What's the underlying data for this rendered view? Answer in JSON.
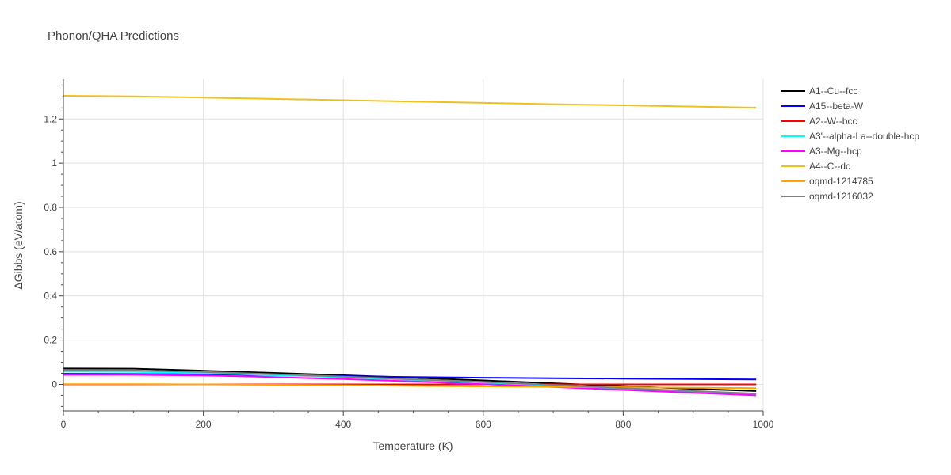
{
  "chart_data": {
    "type": "line",
    "title": "Phonon/QHA Predictions",
    "xlabel": "Temperature (K)",
    "ylabel": "ΔGibbs (eV/atom)",
    "xlim": [
      0,
      1000
    ],
    "ylim": [
      -0.12,
      1.38
    ],
    "xticks": [
      0,
      200,
      400,
      600,
      800,
      1000
    ],
    "xtick_labels": [
      "0",
      "200",
      "400",
      "600",
      "800",
      "1000"
    ],
    "yticks": [
      0,
      0.2,
      0.4,
      0.6,
      0.8,
      1,
      1.2
    ],
    "ytick_labels": [
      "0",
      "0.2",
      "0.4",
      "0.6",
      "0.8",
      "1",
      "1.2"
    ],
    "grid": true,
    "legend_position": "right",
    "series": [
      {
        "name": "A1--Cu--fcc",
        "color": "#000000",
        "x": [
          0,
          100,
          200,
          300,
          400,
          500,
          600,
          700,
          800,
          900,
          990
        ],
        "y": [
          0.072,
          0.071,
          0.062,
          0.052,
          0.041,
          0.03,
          0.018,
          0.005,
          -0.008,
          -0.02,
          -0.03
        ]
      },
      {
        "name": "A15--beta-W",
        "color": "#0000ff",
        "x": [
          0,
          100,
          200,
          300,
          400,
          500,
          600,
          700,
          800,
          900,
          990
        ],
        "y": [
          0.048,
          0.047,
          0.045,
          0.042,
          0.037,
          0.033,
          0.03,
          0.028,
          0.026,
          0.024,
          0.022
        ]
      },
      {
        "name": "A2--W--bcc",
        "color": "#ff0000",
        "x": [
          0,
          100,
          200,
          300,
          400,
          500,
          600,
          700,
          800,
          900,
          990
        ],
        "y": [
          0,
          0,
          0,
          0,
          0,
          0,
          0,
          0,
          0,
          0,
          0
        ]
      },
      {
        "name": "A3'--alpha-La--double-hcp",
        "color": "#00ffff",
        "x": [
          0,
          100,
          200,
          300,
          400,
          500,
          600,
          700,
          800,
          900,
          990
        ],
        "y": [
          0.058,
          0.057,
          0.051,
          0.042,
          0.032,
          0.02,
          0.008,
          -0.006,
          -0.02,
          -0.034,
          -0.046
        ]
      },
      {
        "name": "A3--Mg--hcp",
        "color": "#ff00ff",
        "x": [
          0,
          100,
          200,
          300,
          400,
          500,
          600,
          700,
          800,
          900,
          990
        ],
        "y": [
          0.043,
          0.043,
          0.04,
          0.033,
          0.024,
          0.013,
          0.001,
          -0.012,
          -0.025,
          -0.038,
          -0.05
        ]
      },
      {
        "name": "A4--C--dc",
        "color": "#f0c020",
        "x": [
          0,
          100,
          200,
          300,
          400,
          500,
          600,
          700,
          800,
          900,
          990
        ],
        "y": [
          1.305,
          1.302,
          1.297,
          1.291,
          1.285,
          1.279,
          1.273,
          1.267,
          1.262,
          1.256,
          1.251
        ]
      },
      {
        "name": "oqmd-1214785",
        "color": "#ffa500",
        "x": [
          0,
          100,
          200,
          300,
          400,
          500,
          600,
          700,
          800,
          900,
          990
        ],
        "y": [
          0.001,
          0.001,
          0.0,
          -0.002,
          -0.004,
          -0.007,
          -0.009,
          -0.011,
          -0.013,
          -0.015,
          -0.017
        ]
      },
      {
        "name": "oqmd-1216032",
        "color": "#808080",
        "x": [
          0,
          100,
          200,
          300,
          400,
          500,
          600,
          700,
          800,
          900,
          990
        ],
        "y": [
          0.064,
          0.063,
          0.056,
          0.046,
          0.035,
          0.023,
          0.011,
          -0.003,
          -0.017,
          -0.03,
          -0.042
        ]
      }
    ]
  }
}
